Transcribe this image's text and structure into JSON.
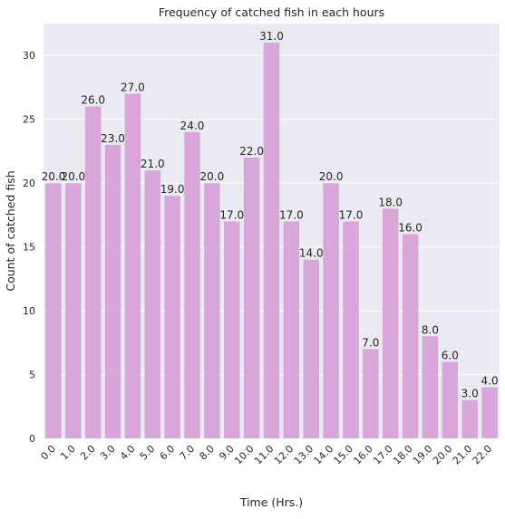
{
  "chart_data": {
    "type": "bar",
    "title": "Frequency of catched fish in each hours",
    "xlabel": "Time (Hrs.)",
    "ylabel": "Count of catched fish",
    "categories": [
      "0.0",
      "1.0",
      "2.0",
      "3.0",
      "4.0",
      "5.0",
      "6.0",
      "7.0",
      "8.0",
      "9.0",
      "10.0",
      "11.0",
      "12.0",
      "13.0",
      "14.0",
      "15.0",
      "16.0",
      "17.0",
      "18.0",
      "19.0",
      "20.0",
      "21.0",
      "22.0"
    ],
    "values": [
      20,
      20,
      26,
      23,
      27,
      21,
      19,
      24,
      20,
      17,
      22,
      31,
      17,
      14,
      20,
      17,
      7,
      18,
      16,
      8,
      6,
      3,
      4
    ],
    "data_labels": [
      "20.0",
      "20.0",
      "26.0",
      "23.0",
      "27.0",
      "21.0",
      "19.0",
      "24.0",
      "20.0",
      "17.0",
      "22.0",
      "31.0",
      "17.0",
      "14.0",
      "20.0",
      "17.0",
      "7.0",
      "18.0",
      "16.0",
      "8.0",
      "6.0",
      "3.0",
      "4.0"
    ],
    "y_ticks": [
      0,
      5,
      10,
      15,
      20,
      25,
      30
    ],
    "ylim": [
      0,
      32.5
    ],
    "grid": true,
    "colors": {
      "bar": "#d8a6d8",
      "plot_background": "#eaeaf2",
      "grid": "#ffffff"
    }
  }
}
